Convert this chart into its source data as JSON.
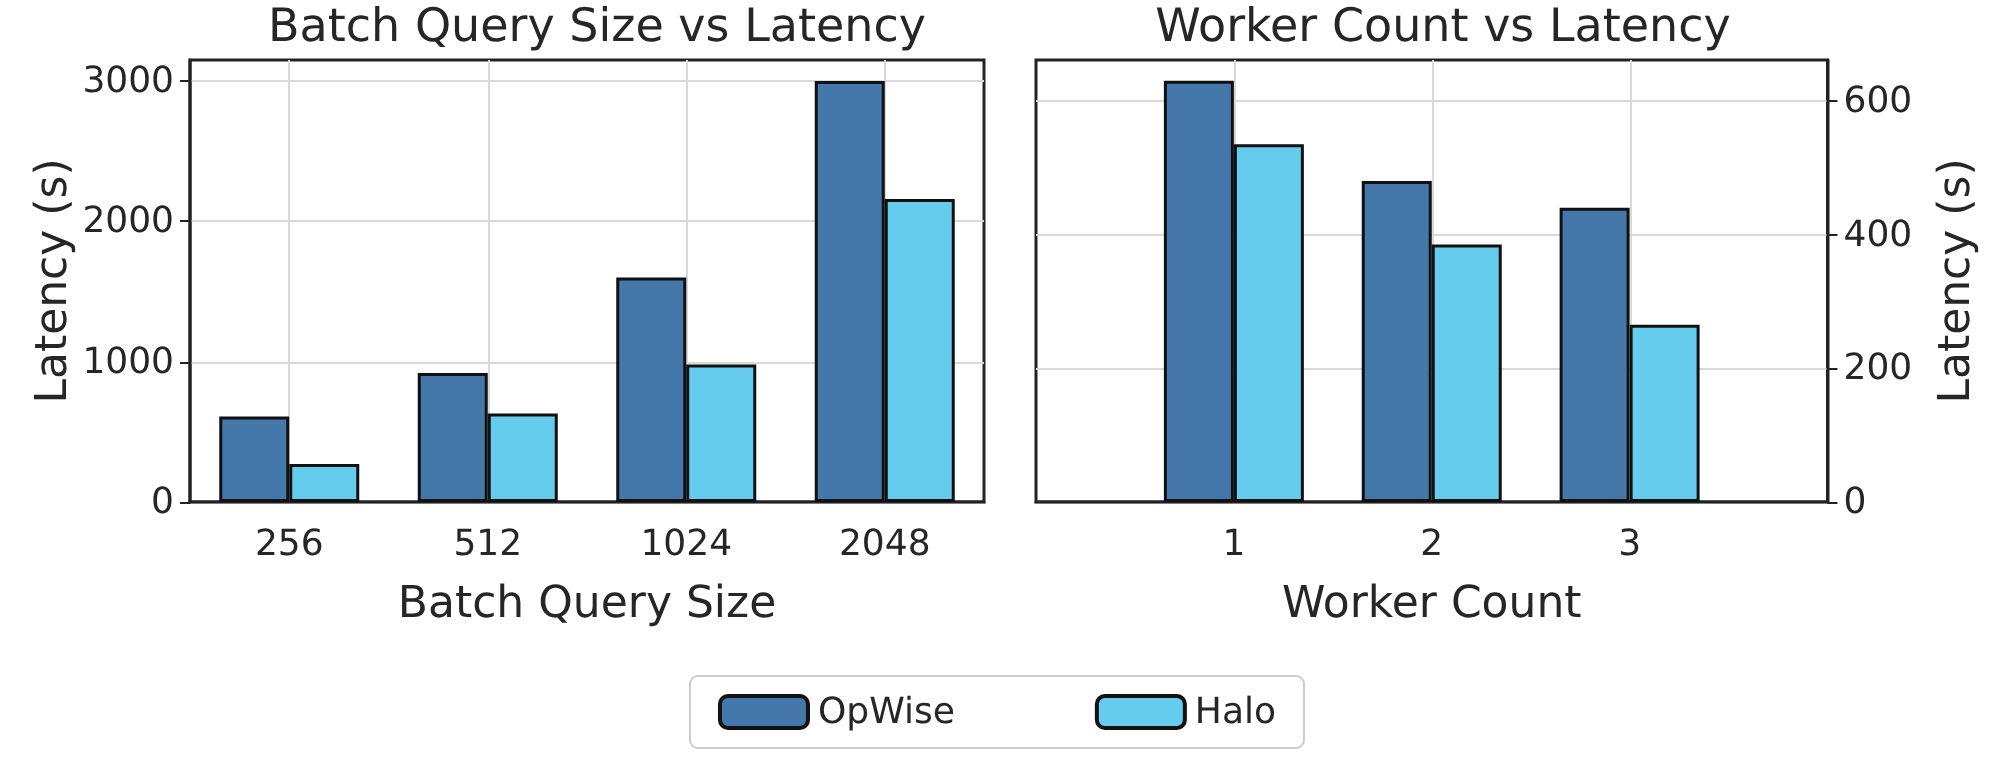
{
  "chart_data": [
    {
      "type": "bar",
      "title": "Batch Query Size vs Latency",
      "xlabel": "Batch Query Size",
      "ylabel": "Latency (s)",
      "categories": [
        "256",
        "512",
        "1024",
        "2048"
      ],
      "series": [
        {
          "name": "OpWise",
          "color": "#4477aa",
          "values": [
            610,
            920,
            1600,
            3000
          ]
        },
        {
          "name": "Halo",
          "color": "#66ccee",
          "values": [
            270,
            630,
            980,
            2160
          ]
        }
      ],
      "ylim": [
        0,
        3150
      ],
      "yticks": [
        0,
        1000,
        2000,
        3000
      ],
      "grid": true,
      "legend": "bottom"
    },
    {
      "type": "bar",
      "title": "Worker Count vs Latency",
      "xlabel": "Worker Count",
      "y2label": "Latency (s)",
      "x": [
        1,
        2,
        3
      ],
      "series": [
        {
          "color": "#4477aa",
          "axis": "y2",
          "values": [
            630,
            480,
            440
          ]
        },
        {
          "color": "#66ccee",
          "axis": "y2",
          "values": [
            535,
            385,
            265
          ]
        }
      ],
      "xlim": [
        0,
        4
      ],
      "xticks": [
        1,
        2,
        3
      ],
      "y2lim": [
        0,
        661
      ],
      "y2ticks": [
        0,
        200,
        400,
        600
      ],
      "grid": true
    }
  ]
}
